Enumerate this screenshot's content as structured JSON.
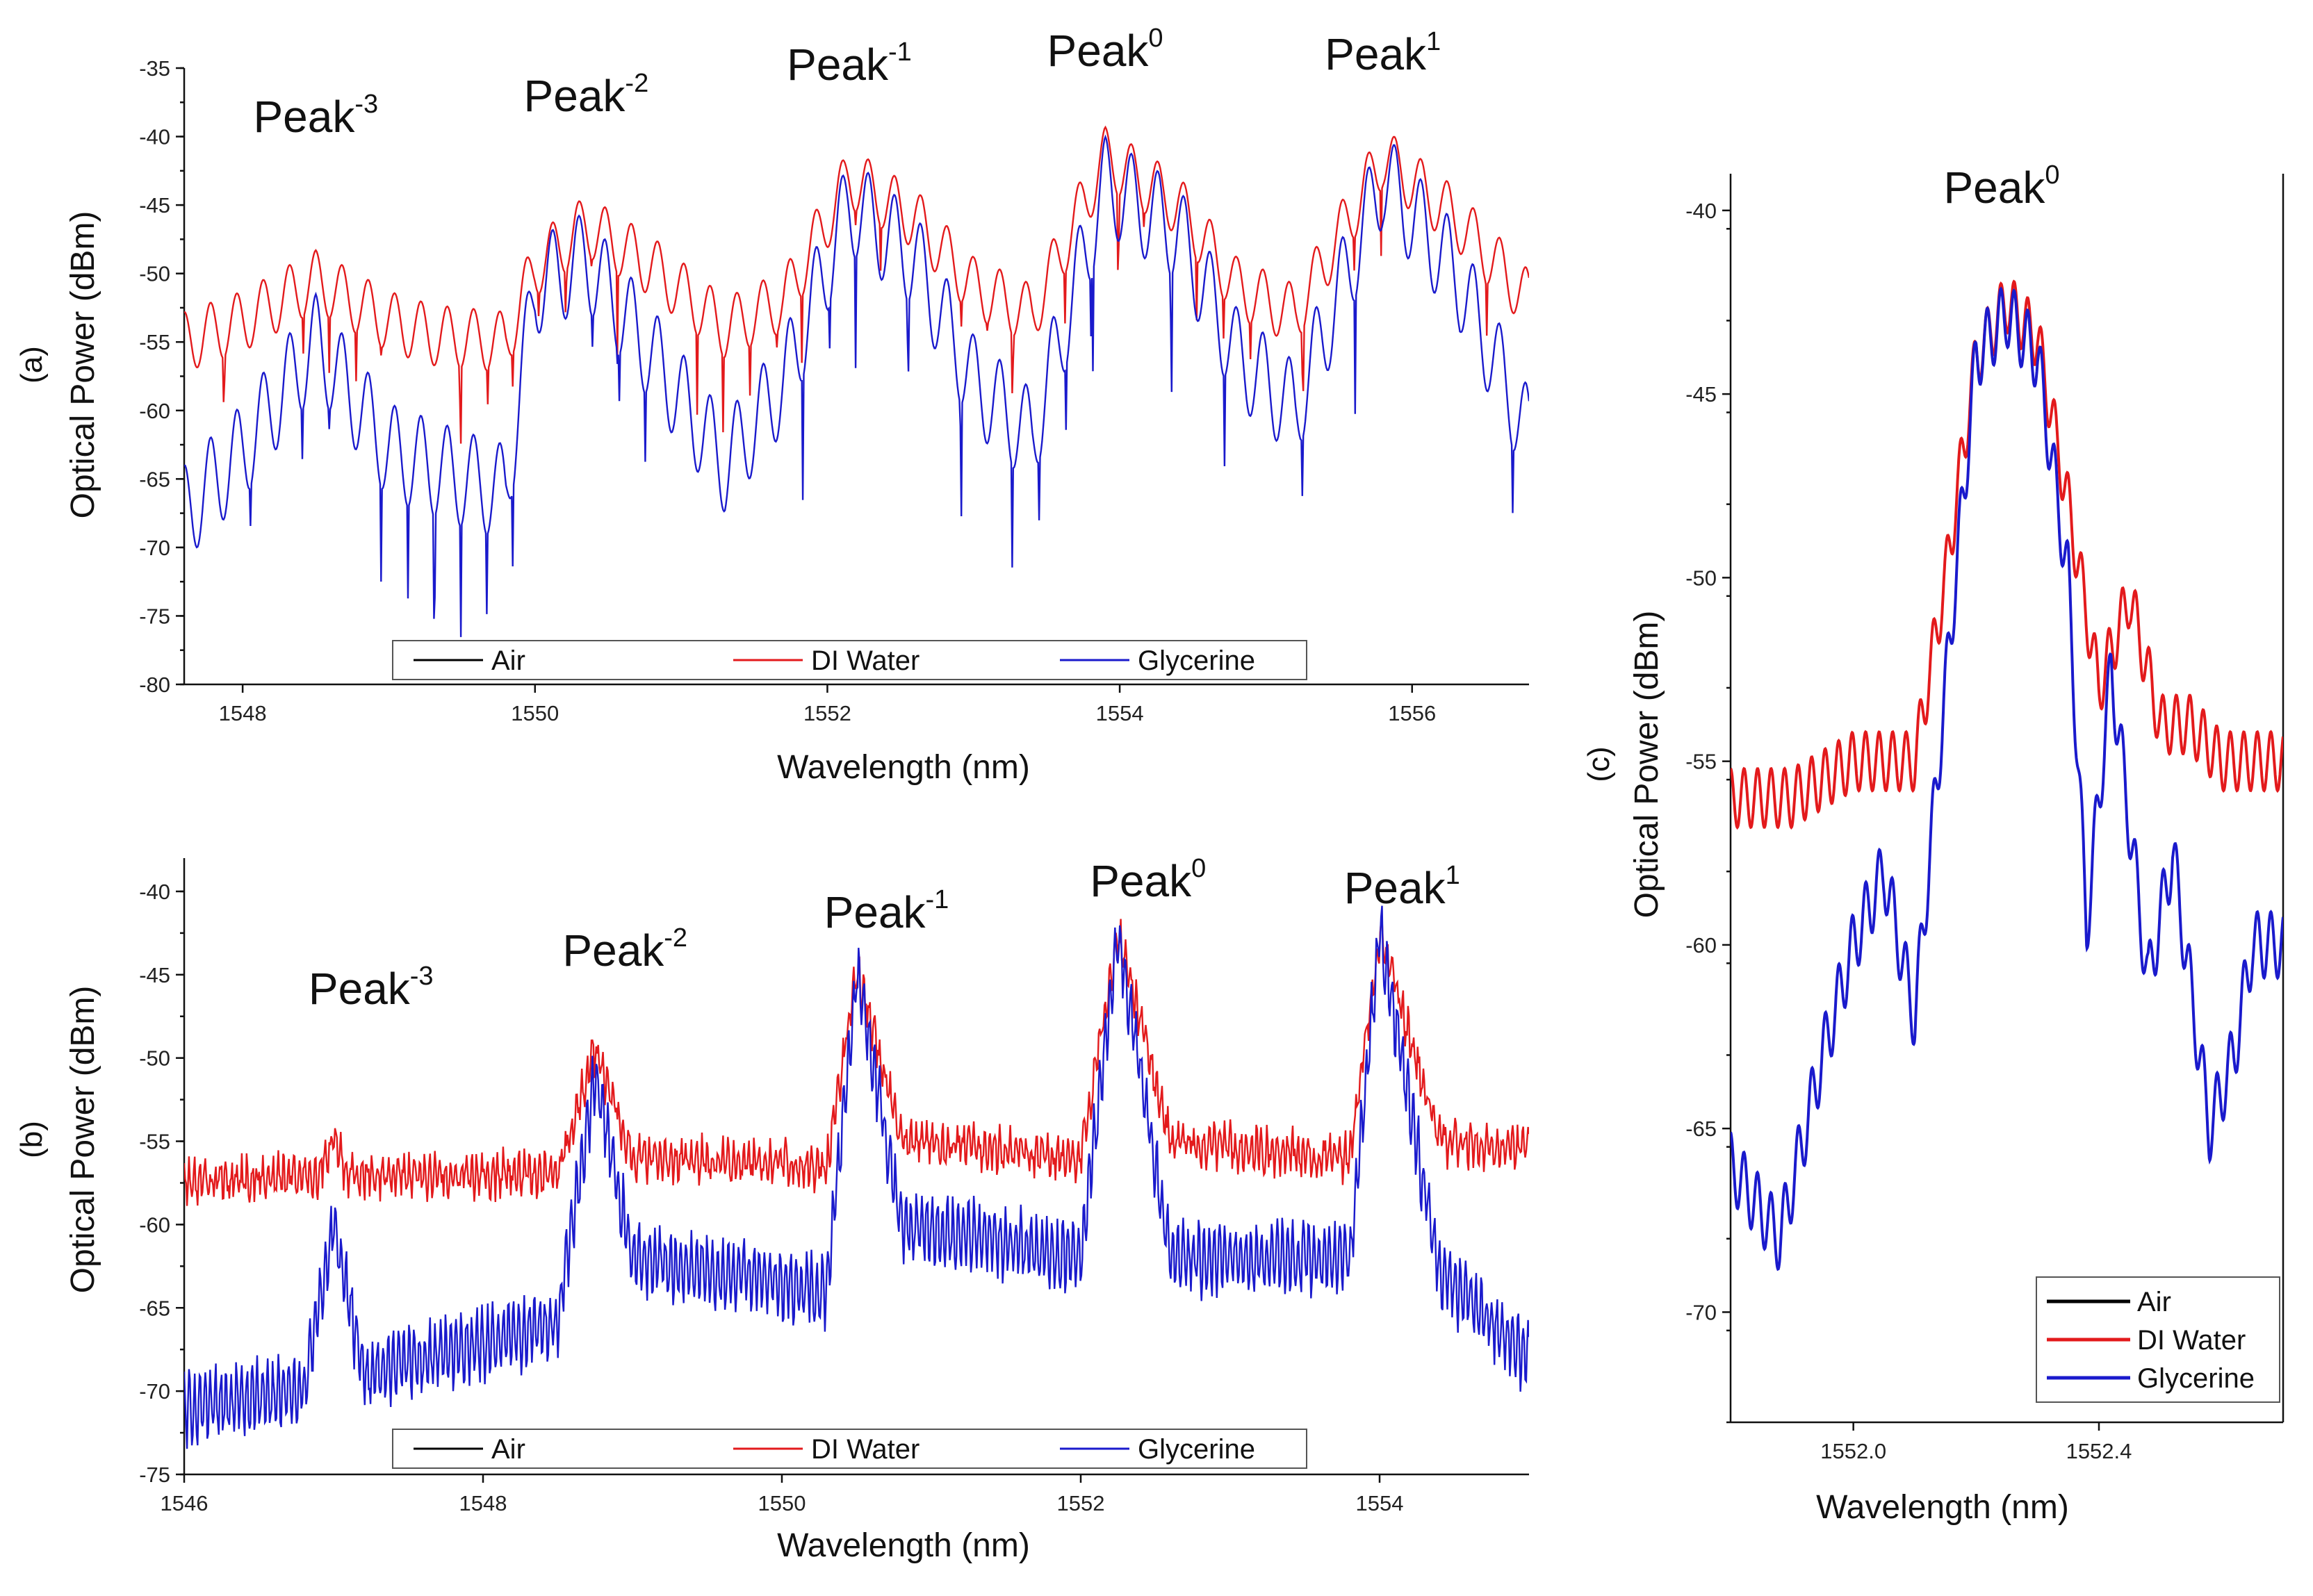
{
  "chart_data": [
    {
      "panel": "(a)",
      "type": "line",
      "xlabel": "Wavelength (nm)",
      "ylabel": "Optical Power (dBm)",
      "xlim": [
        1547.6,
        1556.8
      ],
      "ylim": [
        -80,
        -35
      ],
      "xticks": [
        1548,
        1550,
        1552,
        1554,
        1556
      ],
      "yticks": [
        -80,
        -75,
        -70,
        -65,
        -60,
        -55,
        -50,
        -45,
        -40,
        -35
      ],
      "legend_position": "bottom-center",
      "peaks": [
        {
          "label": "Peak",
          "sup": "-3",
          "x": 1548.5
        },
        {
          "label": "Peak",
          "sup": "-2",
          "x": 1550.35
        },
        {
          "label": "Peak",
          "sup": "-1",
          "x": 1552.15
        },
        {
          "label": "Peak",
          "sup": "0",
          "x": 1553.9
        },
        {
          "label": "Peak",
          "sup": "1",
          "x": 1555.8
        }
      ],
      "series": [
        {
          "name": "Air",
          "color": "#000000",
          "points": []
        },
        {
          "name": "DI Water",
          "color": "#e31a1c",
          "points": [
            [
              1547.6,
              -55
            ],
            [
              1548.0,
              -53.5
            ],
            [
              1548.5,
              -50.5
            ],
            [
              1549.0,
              -53.5
            ],
            [
              1549.3,
              -54.5
            ],
            [
              1549.8,
              -55
            ],
            [
              1550.0,
              -49.5
            ],
            [
              1550.35,
              -46.5
            ],
            [
              1550.8,
              -49.5
            ],
            [
              1551.3,
              -54
            ],
            [
              1551.7,
              -52
            ],
            [
              1552.15,
              -43
            ],
            [
              1552.6,
              -46
            ],
            [
              1553.0,
              -51
            ],
            [
              1553.4,
              -53
            ],
            [
              1553.9,
              -41.5
            ],
            [
              1554.4,
              -45
            ],
            [
              1554.8,
              -51
            ],
            [
              1555.2,
              -53
            ],
            [
              1555.8,
              -41.5
            ],
            [
              1556.3,
              -46
            ],
            [
              1556.8,
              -52
            ]
          ]
        },
        {
          "name": "Glycerine",
          "color": "#1a1acc",
          "points": [
            [
              1547.6,
              -67.5
            ],
            [
              1548.0,
              -63
            ],
            [
              1548.5,
              -55
            ],
            [
              1549.0,
              -63
            ],
            [
              1549.5,
              -65
            ],
            [
              1549.8,
              -66
            ],
            [
              1550.0,
              -51
            ],
            [
              1550.35,
              -49
            ],
            [
              1550.8,
              -56
            ],
            [
              1551.3,
              -64
            ],
            [
              1551.7,
              -58
            ],
            [
              1552.15,
              -45
            ],
            [
              1552.6,
              -49
            ],
            [
              1553.0,
              -58
            ],
            [
              1553.4,
              -62
            ],
            [
              1553.9,
              -43.5
            ],
            [
              1554.4,
              -47
            ],
            [
              1554.8,
              -56
            ],
            [
              1555.2,
              -60
            ],
            [
              1555.8,
              -43
            ],
            [
              1556.3,
              -50
            ],
            [
              1556.8,
              -62
            ]
          ]
        }
      ]
    },
    {
      "panel": "(b)",
      "type": "line",
      "xlabel": "Wavelength (nm)",
      "ylabel": "Optical Power (dBm)",
      "xlim": [
        1546,
        1555
      ],
      "ylim": [
        -75,
        -38
      ],
      "xticks": [
        1546,
        1548,
        1550,
        1552,
        1554
      ],
      "yticks": [
        -75,
        -70,
        -65,
        -60,
        -55,
        -50,
        -45,
        -40
      ],
      "legend_position": "bottom-center",
      "peaks": [
        {
          "label": "Peak",
          "sup": "-3",
          "x": 1547.25
        },
        {
          "label": "Peak",
          "sup": "-2",
          "x": 1548.95
        },
        {
          "label": "Peak",
          "sup": "-1",
          "x": 1550.7
        },
        {
          "label": "Peak",
          "sup": "0",
          "x": 1552.45
        },
        {
          "label": "Peak",
          "sup": "1",
          "x": 1554.15
        }
      ],
      "series": [
        {
          "name": "Air",
          "color": "#000000",
          "points": []
        },
        {
          "name": "DI Water",
          "color": "#e31a1c",
          "points": [
            [
              1546,
              -57.5
            ],
            [
              1546.9,
              -57
            ],
            [
              1547.0,
              -55
            ],
            [
              1547.1,
              -57
            ],
            [
              1548.5,
              -57
            ],
            [
              1548.75,
              -49.5
            ],
            [
              1549.0,
              -56
            ],
            [
              1550.3,
              -56.5
            ],
            [
              1550.5,
              -44.5
            ],
            [
              1550.8,
              -55
            ],
            [
              1552.0,
              -56
            ],
            [
              1552.25,
              -42.5
            ],
            [
              1552.6,
              -55
            ],
            [
              1553.8,
              -56
            ],
            [
              1554.0,
              -42.5
            ],
            [
              1554.4,
              -55
            ],
            [
              1555,
              -55.5
            ]
          ]
        },
        {
          "name": "Glycerine",
          "color": "#1a1acc",
          "points": [
            [
              1546,
              -71
            ],
            [
              1546.8,
              -70
            ],
            [
              1547.0,
              -60
            ],
            [
              1547.2,
              -69
            ],
            [
              1548.5,
              -66
            ],
            [
              1548.75,
              -51
            ],
            [
              1549.0,
              -62
            ],
            [
              1550.3,
              -64
            ],
            [
              1550.5,
              -45
            ],
            [
              1550.8,
              -60
            ],
            [
              1552.0,
              -62
            ],
            [
              1552.25,
              -42.5
            ],
            [
              1552.6,
              -62
            ],
            [
              1553.8,
              -62
            ],
            [
              1554.0,
              -42.5
            ],
            [
              1554.4,
              -63
            ],
            [
              1555,
              -68
            ]
          ]
        }
      ]
    },
    {
      "panel": "(c)",
      "type": "line",
      "title": "Peak",
      "title_sup": "0",
      "xlabel": "Wavelength (nm)",
      "ylabel": "Optical Power (dBm)",
      "xlim": [
        1551.8,
        1552.7
      ],
      "ylim": [
        -73,
        -39
      ],
      "xticks": [
        "1552.0",
        "1552.4"
      ],
      "yticks": [
        -70,
        -65,
        -60,
        -55,
        -50,
        -45,
        -40
      ],
      "legend_position": "bottom-right",
      "series": [
        {
          "name": "Air",
          "color": "#000000",
          "points": []
        },
        {
          "name": "DI Water",
          "color": "#e31a1c",
          "points": [
            [
              1551.8,
              -56
            ],
            [
              1551.9,
              -56
            ],
            [
              1552.0,
              -55
            ],
            [
              1552.1,
              -55
            ],
            [
              1552.15,
              -50
            ],
            [
              1552.2,
              -44
            ],
            [
              1552.25,
              -42.5
            ],
            [
              1552.3,
              -43.5
            ],
            [
              1552.35,
              -48
            ],
            [
              1552.4,
              -53
            ],
            [
              1552.45,
              -50.5
            ],
            [
              1552.5,
              -54
            ],
            [
              1552.55,
              -54
            ],
            [
              1552.6,
              -55
            ],
            [
              1552.7,
              -55
            ]
          ]
        },
        {
          "name": "Glycerine",
          "color": "#1a1acc",
          "points": [
            [
              1551.8,
              -66
            ],
            [
              1551.88,
              -68
            ],
            [
              1551.95,
              -63
            ],
            [
              1552.0,
              -60
            ],
            [
              1552.05,
              -58
            ],
            [
              1552.1,
              -62
            ],
            [
              1552.15,
              -53
            ],
            [
              1552.2,
              -44
            ],
            [
              1552.25,
              -42.8
            ],
            [
              1552.3,
              -44
            ],
            [
              1552.35,
              -50
            ],
            [
              1552.38,
              -59.5
            ],
            [
              1552.42,
              -52.5
            ],
            [
              1552.48,
              -61
            ],
            [
              1552.52,
              -57.5
            ],
            [
              1552.58,
              -65
            ],
            [
              1552.62,
              -63
            ],
            [
              1552.65,
              -60
            ],
            [
              1552.7,
              -60
            ]
          ]
        }
      ]
    }
  ]
}
